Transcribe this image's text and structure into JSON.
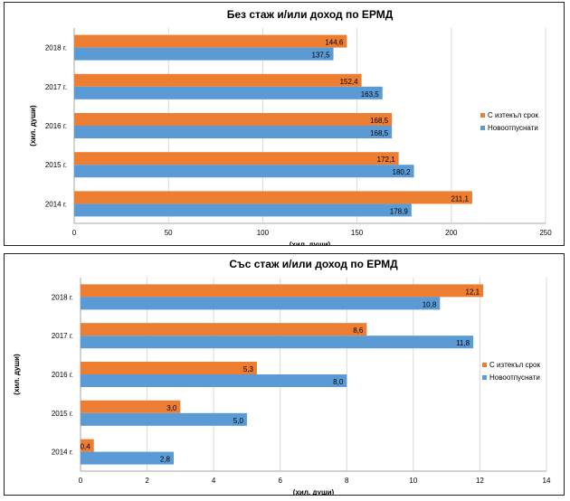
{
  "chart_data": [
    {
      "type": "bar",
      "orientation": "horizontal",
      "title": "Без стаж и/или доход по ЕРМД",
      "xlabel": "(хил. души)",
      "ylabel": "(хил. души)",
      "categories": [
        "2018 г.",
        "2017 г.",
        "2016 г.",
        "2015 г.",
        "2014 г."
      ],
      "series": [
        {
          "name": "С изтекъл срок",
          "color": "#ED7D31",
          "values": [
            144.6,
            152.4,
            168.5,
            172.1,
            211.1
          ],
          "labels": [
            "144,6",
            "152,4",
            "168,5",
            "172,1",
            "211,1"
          ]
        },
        {
          "name": "Новоотпуснати",
          "color": "#5B9BD5",
          "values": [
            137.5,
            163.5,
            168.5,
            180.2,
            178.9
          ],
          "labels": [
            "137,5",
            "163,5",
            "168,5",
            "180,2",
            "178,9"
          ]
        }
      ],
      "xlim": [
        0,
        250
      ],
      "xticks": [
        "0",
        "50",
        "100",
        "150",
        "200",
        "250"
      ],
      "legend": "right"
    },
    {
      "type": "bar",
      "orientation": "horizontal",
      "title": "Със стаж и/или доход по ЕРМД",
      "xlabel": "(хил. души)",
      "ylabel": "(хил. души)",
      "categories": [
        "2018 г.",
        "2017 г.",
        "2016 г.",
        "2015 г.",
        "2014 г."
      ],
      "series": [
        {
          "name": "С изтекъл срок",
          "color": "#ED7D31",
          "values": [
            12.1,
            8.6,
            5.3,
            3.0,
            0.4
          ],
          "labels": [
            "12,1",
            "8,6",
            "5,3",
            "3,0",
            "0,4"
          ]
        },
        {
          "name": "Новоотпуснати",
          "color": "#5B9BD5",
          "values": [
            10.8,
            11.8,
            8.0,
            5.0,
            2.8
          ],
          "labels": [
            "10,8",
            "11,8",
            "8,0",
            "5,0",
            "2,8"
          ]
        }
      ],
      "xlim": [
        0,
        14
      ],
      "xticks": [
        "0",
        "2",
        "4",
        "6",
        "8",
        "10",
        "12",
        "14"
      ],
      "legend": "right"
    }
  ]
}
